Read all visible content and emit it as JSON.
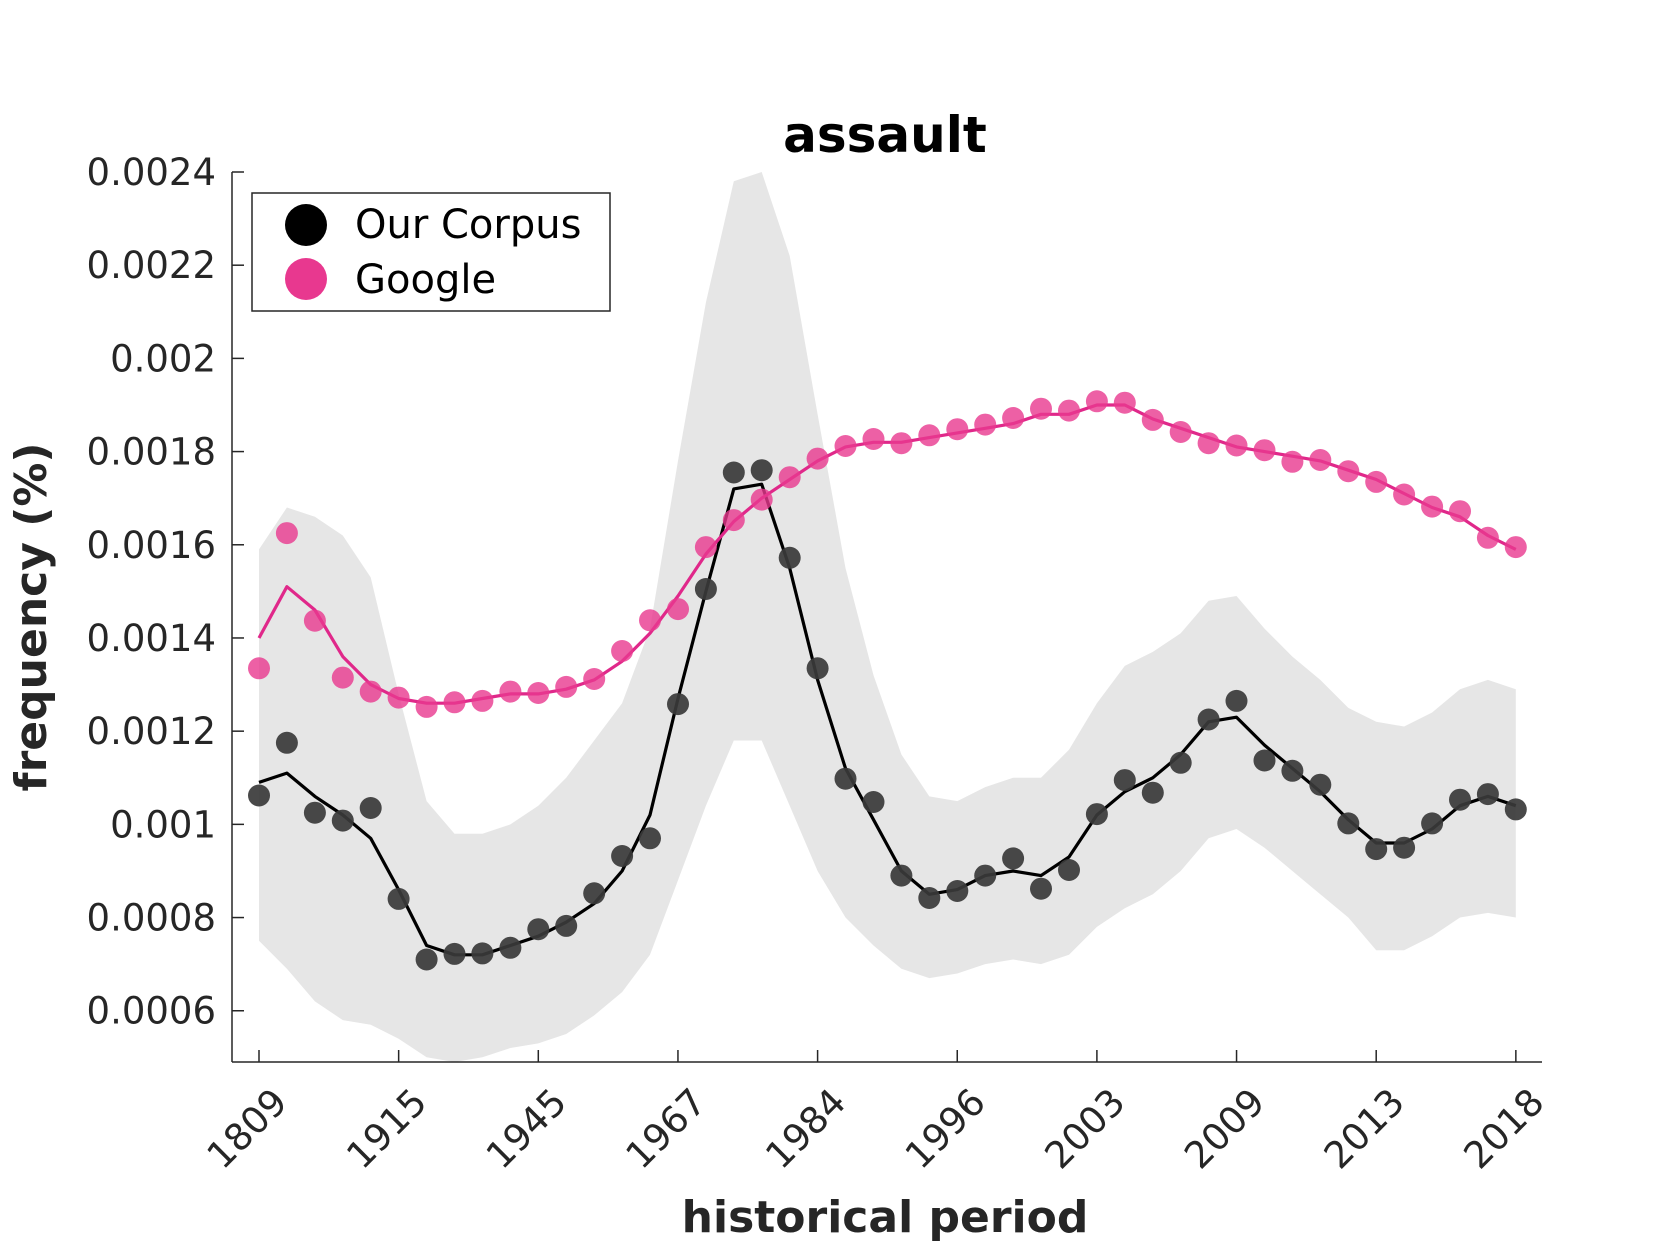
{
  "chart_data": {
    "type": "line",
    "title": "assault",
    "xlabel": "historical period",
    "ylabel": "frequency (%)",
    "ylim": [
      0.00049,
      0.0024
    ],
    "yticks": [
      "0.0006",
      "0.0008",
      "0.001",
      "0.0012",
      "0.0014",
      "0.0016",
      "0.0018",
      "0.002",
      "0.0022",
      "0.0024"
    ],
    "ytick_values": [
      0.0006,
      0.0008,
      0.001,
      0.0012,
      0.0014,
      0.0016,
      0.0018,
      0.002,
      0.0022,
      0.0024
    ],
    "xticks": [
      "1809",
      "1915",
      "1945",
      "1967",
      "1984",
      "1996",
      "2003",
      "2009",
      "2013",
      "2018"
    ],
    "xtick_index": [
      0,
      5,
      10,
      15,
      20,
      25,
      30,
      35,
      40,
      45
    ],
    "grid": false,
    "legend_position": "top-left",
    "colors": {
      "corpus": "#3a3a3a",
      "corpus_line": "#000000",
      "google": "#e8388f",
      "google_line": "#e0288a",
      "band": "#e6e6e6"
    },
    "series": [
      {
        "name": "Our Corpus",
        "points": [
          0.001062,
          0.001175,
          0.001025,
          0.001008,
          0.001035,
          0.00084,
          0.00071,
          0.000722,
          0.000723,
          0.000735,
          0.000775,
          0.000782,
          0.000852,
          0.000932,
          0.00097,
          0.001258,
          0.001505,
          0.001755,
          0.00176,
          0.001572,
          0.001335,
          0.001098,
          0.001048,
          0.00089,
          0.000842,
          0.000857,
          0.00089,
          0.000927,
          0.000862,
          0.000902,
          0.001022,
          0.001095,
          0.001068,
          0.001132,
          0.001225,
          0.001265,
          0.001137,
          0.001115,
          0.001085,
          0.001002,
          0.000947,
          0.00095,
          0.001002,
          0.001053,
          0.001065,
          0.001032
        ],
        "smooth": [
          0.00109,
          0.00111,
          0.00106,
          0.00102,
          0.00097,
          0.00086,
          0.00074,
          0.00072,
          0.00072,
          0.00074,
          0.00076,
          0.00079,
          0.00083,
          0.0009,
          0.00102,
          0.00127,
          0.0015,
          0.00172,
          0.00173,
          0.00155,
          0.00131,
          0.00112,
          0.00101,
          0.0009,
          0.00085,
          0.00086,
          0.00089,
          0.0009,
          0.00089,
          0.00093,
          0.00102,
          0.00107,
          0.0011,
          0.00115,
          0.00122,
          0.00123,
          0.00117,
          0.00112,
          0.00107,
          0.00101,
          0.00096,
          0.00096,
          0.00099,
          0.00104,
          0.00106,
          0.00104
        ],
        "band_upper": [
          0.00159,
          0.00168,
          0.00166,
          0.00162,
          0.00153,
          0.00128,
          0.00105,
          0.00098,
          0.00098,
          0.001,
          0.00104,
          0.0011,
          0.00118,
          0.00126,
          0.00142,
          0.00178,
          0.00212,
          0.00238,
          0.0024,
          0.00222,
          0.00188,
          0.00155,
          0.00132,
          0.00115,
          0.00106,
          0.00105,
          0.00108,
          0.0011,
          0.0011,
          0.00116,
          0.00126,
          0.00134,
          0.00137,
          0.00141,
          0.00148,
          0.00149,
          0.00142,
          0.00136,
          0.00131,
          0.00125,
          0.00122,
          0.00121,
          0.00124,
          0.00129,
          0.00131,
          0.00129
        ],
        "band_lower": [
          0.00075,
          0.00069,
          0.00062,
          0.00058,
          0.00057,
          0.00054,
          0.0005,
          0.00049,
          0.0005,
          0.00052,
          0.00053,
          0.00055,
          0.00059,
          0.00064,
          0.00072,
          0.00088,
          0.00104,
          0.00118,
          0.00118,
          0.00104,
          0.0009,
          0.0008,
          0.00074,
          0.00069,
          0.00067,
          0.00068,
          0.0007,
          0.00071,
          0.0007,
          0.00072,
          0.00078,
          0.00082,
          0.00085,
          0.0009,
          0.00097,
          0.00099,
          0.00095,
          0.0009,
          0.00085,
          0.0008,
          0.00073,
          0.00073,
          0.00076,
          0.0008,
          0.00081,
          0.0008
        ]
      },
      {
        "name": "Google",
        "points": [
          0.001335,
          0.001625,
          0.001437,
          0.001315,
          0.001285,
          0.001272,
          0.001252,
          0.001262,
          0.001265,
          0.001285,
          0.001282,
          0.001295,
          0.001312,
          0.001372,
          0.001438,
          0.001462,
          0.001595,
          0.001653,
          0.001697,
          0.001745,
          0.001785,
          0.001812,
          0.001827,
          0.001818,
          0.001835,
          0.001848,
          0.001858,
          0.001872,
          0.001892,
          0.001888,
          0.001908,
          0.001905,
          0.001868,
          0.001842,
          0.001818,
          0.001813,
          0.001803,
          0.001778,
          0.001782,
          0.001758,
          0.001735,
          0.001708,
          0.001682,
          0.001672,
          0.001615,
          0.001595
        ],
        "smooth": [
          0.0014,
          0.00151,
          0.00146,
          0.00136,
          0.0013,
          0.00127,
          0.00126,
          0.00126,
          0.00127,
          0.00128,
          0.00128,
          0.00129,
          0.00131,
          0.00135,
          0.00141,
          0.00149,
          0.00158,
          0.00165,
          0.0017,
          0.00174,
          0.00178,
          0.00181,
          0.00182,
          0.00182,
          0.00183,
          0.00184,
          0.00185,
          0.00186,
          0.00188,
          0.00188,
          0.0019,
          0.0019,
          0.00187,
          0.00185,
          0.00183,
          0.00181,
          0.0018,
          0.00179,
          0.00178,
          0.00176,
          0.00174,
          0.00171,
          0.00168,
          0.00166,
          0.00162,
          0.00159
        ]
      }
    ]
  }
}
